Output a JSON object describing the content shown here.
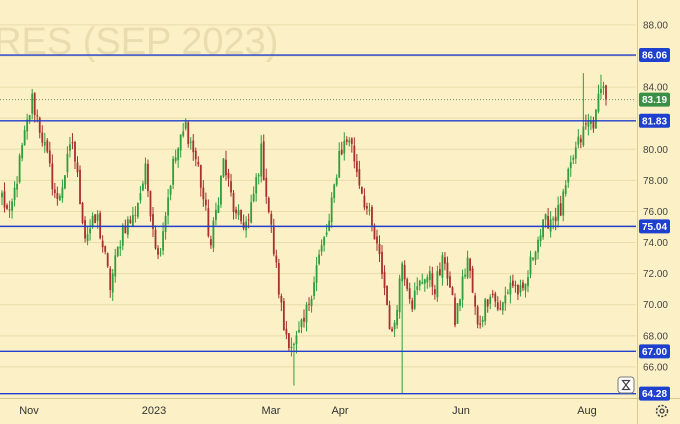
{
  "watermark": "RES (SEP 2023)",
  "colors": {
    "background": "#fbf0c6",
    "up": "#2f9e3b",
    "down": "#a8312f",
    "level_line": "#1f3fcf",
    "badge": "#1f3fcf",
    "last_price_badge": "#3a8f47",
    "grid": "#eadcaa"
  },
  "icons": {
    "time_zone": "hourglass-icon",
    "settings": "gear-icon"
  },
  "chart_data": {
    "type": "candlestick",
    "ylim": [
      64.0,
      89.6
    ],
    "y_ticks": [
      66.0,
      68.0,
      70.0,
      72.0,
      74.0,
      76.0,
      78.0,
      80.0,
      82.0,
      84.0,
      86.0,
      88.0
    ],
    "y_tick_labels": [
      "66.00",
      "68.00",
      "70.00",
      "72.00",
      "74.00",
      "76.00",
      "78.00",
      "80.00",
      "82.00",
      "84.00",
      "86.00",
      "88.00"
    ],
    "x_ticks": [
      "Nov",
      "2023",
      "Mar",
      "Apr",
      "Jun",
      "Aug"
    ],
    "levels": [
      {
        "value": 86.06,
        "label": "86.06"
      },
      {
        "value": 81.83,
        "label": "81.83"
      },
      {
        "value": 75.04,
        "label": "75.04"
      },
      {
        "value": 67.0,
        "label": "67.00"
      },
      {
        "value": 64.28,
        "label": "64.28"
      }
    ],
    "last_price": {
      "value": 83.19,
      "label": "83.19"
    },
    "anchors": [
      [
        0,
        77.0
      ],
      [
        3,
        75.5
      ],
      [
        8,
        80.0
      ],
      [
        12,
        83.2
      ],
      [
        16,
        80.8
      ],
      [
        22,
        76.5
      ],
      [
        28,
        80.5
      ],
      [
        33,
        74.5
      ],
      [
        38,
        75.5
      ],
      [
        43,
        71.2
      ],
      [
        48,
        75.0
      ],
      [
        52,
        75.5
      ],
      [
        57,
        78.5
      ],
      [
        62,
        73.0
      ],
      [
        68,
        79.0
      ],
      [
        73,
        81.5
      ],
      [
        78,
        78.8
      ],
      [
        83,
        73.8
      ],
      [
        88,
        79.2
      ],
      [
        93,
        75.5
      ],
      [
        98,
        75.2
      ],
      [
        103,
        79.8
      ],
      [
        108,
        73.5
      ],
      [
        112,
        68.5
      ],
      [
        116,
        67.2
      ],
      [
        120,
        68.8
      ],
      [
        125,
        72.5
      ],
      [
        130,
        75.2
      ],
      [
        134,
        79.8
      ],
      [
        138,
        80.8
      ],
      [
        142,
        78.0
      ],
      [
        146,
        75.5
      ],
      [
        151,
        72.2
      ],
      [
        155,
        67.8
      ],
      [
        159,
        72.8
      ],
      [
        163,
        70.2
      ],
      [
        168,
        72.0
      ],
      [
        172,
        71.2
      ],
      [
        176,
        73.0
      ],
      [
        180,
        69.0
      ],
      [
        185,
        73.0
      ],
      [
        189,
        68.5
      ],
      [
        194,
        71.0
      ],
      [
        198,
        69.5
      ],
      [
        202,
        71.5
      ],
      [
        207,
        70.5
      ],
      [
        212,
        74.0
      ],
      [
        217,
        75.5
      ],
      [
        222,
        76.0
      ],
      [
        227,
        79.5
      ],
      [
        232,
        81.5
      ],
      [
        236,
        82.0
      ],
      [
        238,
        84.5
      ],
      [
        240,
        83.19
      ]
    ]
  }
}
